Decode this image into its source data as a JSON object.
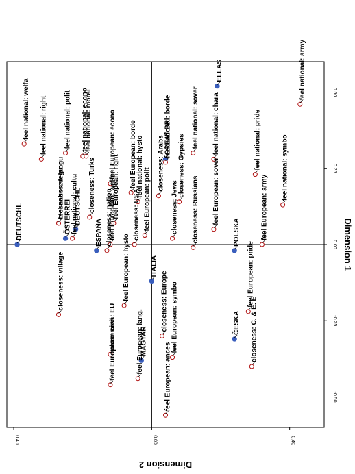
{
  "chart_data": {
    "type": "scatter",
    "orientation": "rotated-90-clockwise",
    "xlabel": "Dimension 1",
    "ylabel": "Dimension 2",
    "xlim": [
      -0.6,
      0.6
    ],
    "ylim": [
      -0.5,
      0.42
    ],
    "xticks": [
      "-0.50",
      "-0.25",
      "0.00",
      "0.25",
      "0.50"
    ],
    "yticks": [
      "0.40",
      "0.00",
      "-0.40"
    ],
    "grid": false,
    "series": [
      {
        "name": "",
        "marker": "filled",
        "color": "#3a5ebd",
        "points": [
          {
            "label": "ELLAS",
            "x": 0.52,
            "y": -0.19
          },
          {
            "label": "GREAT BR",
            "x": 0.28,
            "y": -0.04
          },
          {
            "label": "DEUTSCHL",
            "x": 0.0,
            "y": 0.39
          },
          {
            "label": "DEUTSCHL",
            "x": 0.05,
            "y": 0.22
          },
          {
            "label": "ÖSTERREI",
            "x": 0.02,
            "y": 0.25
          },
          {
            "label": "ESPAÑA",
            "x": -0.02,
            "y": 0.16
          },
          {
            "label": "ITALIA",
            "x": -0.12,
            "y": 0.0
          },
          {
            "label": "POLSKA",
            "x": -0.02,
            "y": -0.24
          },
          {
            "label": "ČESKA",
            "x": -0.31,
            "y": -0.24
          },
          {
            "label": "MAGYAR",
            "x": -0.38,
            "y": 0.03
          }
        ]
      },
      {
        "name": "",
        "marker": "open",
        "color": "#b01010",
        "points": [
          {
            "label": "feel national: welfa",
            "x": 0.33,
            "y": 0.37
          },
          {
            "label": "feel national: right",
            "x": 0.28,
            "y": 0.32
          },
          {
            "label": "feel national: langu",
            "x": 0.07,
            "y": 0.27
          },
          {
            "label": "feel national: polit",
            "x": 0.3,
            "y": 0.25
          },
          {
            "label": "feel national: cultu",
            "x": 0.02,
            "y": 0.23
          },
          {
            "label": "feel national: econo",
            "x": 0.29,
            "y": 0.2
          },
          {
            "label": "feel national: moral",
            "x": 0.29,
            "y": 0.19
          },
          {
            "label": "feel national: hysto",
            "x": 0.14,
            "y": 0.04
          },
          {
            "label": "feel national: borde",
            "x": 0.27,
            "y": -0.04
          },
          {
            "label": "feel national: sover",
            "x": 0.3,
            "y": -0.12
          },
          {
            "label": "feel national: chara",
            "x": 0.28,
            "y": -0.18
          },
          {
            "label": "feel national: pride",
            "x": 0.23,
            "y": -0.3
          },
          {
            "label": "feel national: symbo",
            "x": 0.13,
            "y": -0.38
          },
          {
            "label": "feel national: army",
            "x": 0.46,
            "y": -0.43
          },
          {
            "label": "feel European: econo",
            "x": 0.2,
            "y": 0.12
          },
          {
            "label": "feel European: borde",
            "x": 0.17,
            "y": 0.06
          },
          {
            "label": "feel European: right",
            "x": 0.07,
            "y": 0.11
          },
          {
            "label": "feel European: welfa",
            "x": 0.0,
            "y": 0.12
          },
          {
            "label": "feel European: polit",
            "x": 0.03,
            "y": 0.02
          },
          {
            "label": "feel European: sover",
            "x": 0.05,
            "y": -0.18
          },
          {
            "label": "feel European: army",
            "x": 0.0,
            "y": -0.32
          },
          {
            "label": "feel European: pride",
            "x": -0.22,
            "y": -0.28
          },
          {
            "label": "feel European: hysto",
            "x": -0.2,
            "y": 0.08
          },
          {
            "label": "feel European: civil",
            "x": -0.46,
            "y": 0.12
          },
          {
            "label": "feel European: ances",
            "x": -0.56,
            "y": -0.04
          },
          {
            "label": "feel European: lang.",
            "x": -0.44,
            "y": 0.04
          },
          {
            "label": "feel European: symbo",
            "x": -0.37,
            "y": -0.06
          },
          {
            "label": "closeness: region",
            "x": 0.07,
            "y": 0.27
          },
          {
            "label": "closeness: Turks",
            "x": 0.09,
            "y": 0.18
          },
          {
            "label": "closeness: nation",
            "x": -0.02,
            "y": 0.13
          },
          {
            "label": "closeness: USA",
            "x": 0.0,
            "y": 0.05
          },
          {
            "label": "closeness: Arabs",
            "x": 0.16,
            "y": -0.02
          },
          {
            "label": "closeness: Jews",
            "x": 0.02,
            "y": -0.06
          },
          {
            "label": "closeness: Gypsies",
            "x": 0.14,
            "y": -0.08
          },
          {
            "label": "closeness: Russians",
            "x": -0.01,
            "y": -0.12
          },
          {
            "label": "closeness: village",
            "x": -0.23,
            "y": 0.27
          },
          {
            "label": "closeness: EU",
            "x": -0.36,
            "y": 0.12
          },
          {
            "label": "closeness: Europe",
            "x": -0.3,
            "y": -0.03
          },
          {
            "label": "closeness: C. & E. E",
            "x": -0.4,
            "y": -0.29
          }
        ]
      }
    ]
  }
}
